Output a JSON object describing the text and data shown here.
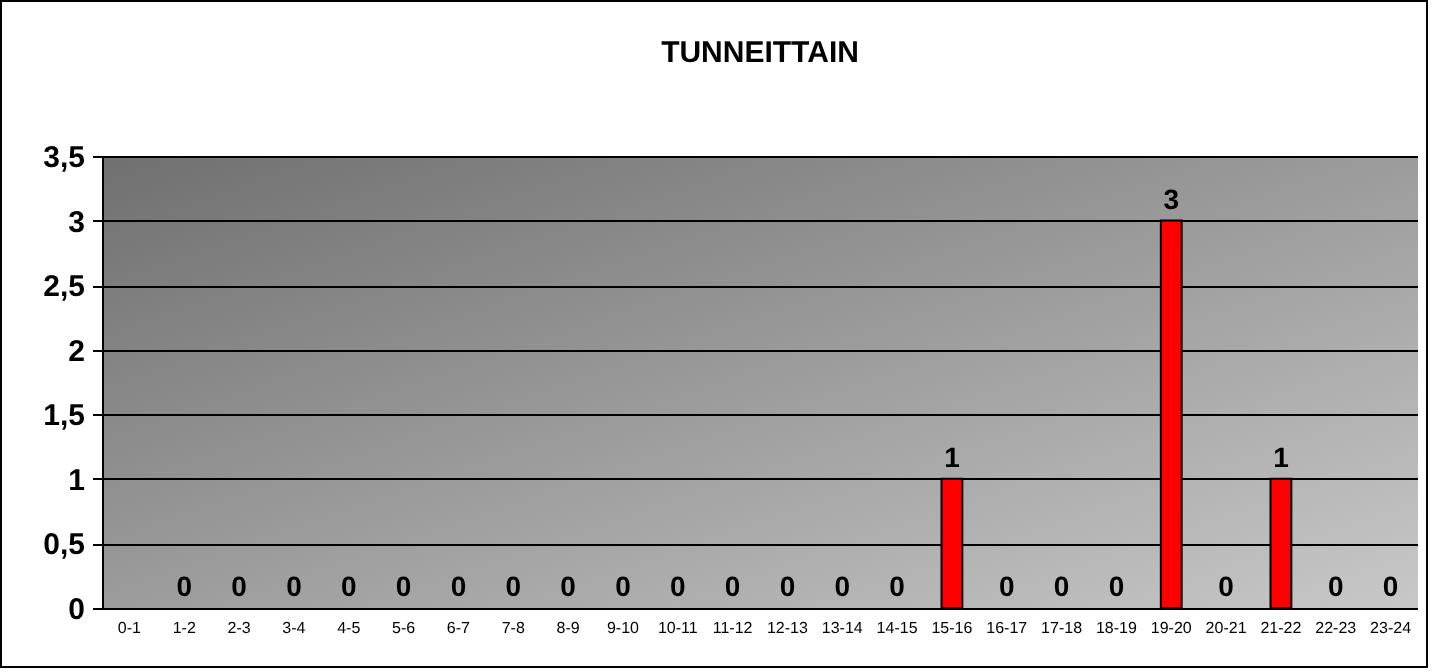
{
  "chart_data": {
    "type": "bar",
    "title": "TUNNEITTAIN",
    "categories": [
      "0-1",
      "1-2",
      "2-3",
      "3-4",
      "4-5",
      "5-6",
      "6-7",
      "7-8",
      "8-9",
      "9-10",
      "10-11",
      "11-12",
      "12-13",
      "13-14",
      "14-15",
      "15-16",
      "16-17",
      "17-18",
      "18-19",
      "19-20",
      "20-21",
      "21-22",
      "22-23",
      "23-24"
    ],
    "values": [
      0,
      0,
      0,
      0,
      0,
      0,
      0,
      0,
      0,
      0,
      0,
      0,
      0,
      0,
      0,
      1,
      0,
      0,
      0,
      3,
      0,
      1,
      0,
      0
    ],
    "value_labels": [
      null,
      "0",
      "0",
      "0",
      "0",
      "0",
      "0",
      "0",
      "0",
      "0",
      "0",
      "0",
      "0",
      "0",
      "0",
      "1",
      "0",
      "0",
      "0",
      "3",
      "0",
      "1",
      "0",
      "0"
    ],
    "color": "#ff0000",
    "ylim": [
      0,
      3.5
    ],
    "yticks": [
      0,
      {
        "value": 0.5,
        "label": "0,5"
      },
      1,
      {
        "value": 1.5,
        "label": "1,5"
      },
      2,
      {
        "value": 2.5,
        "label": "2,5"
      },
      3,
      {
        "value": 3.5,
        "label": "3,5"
      }
    ],
    "grid": "y"
  }
}
